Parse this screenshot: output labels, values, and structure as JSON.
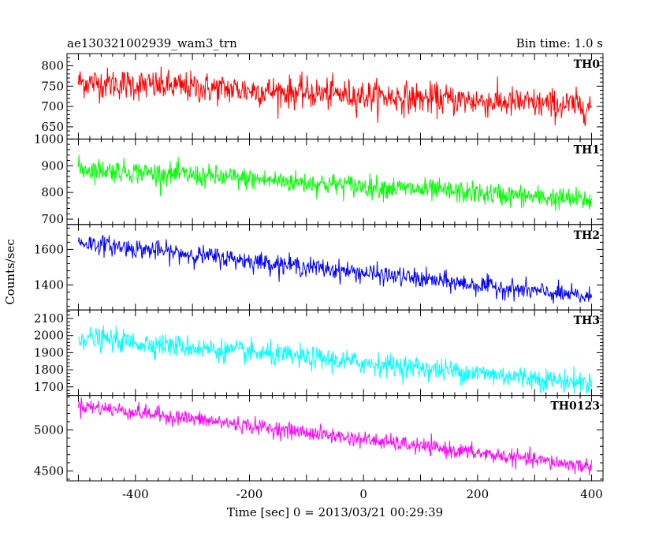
{
  "chart_data": {
    "type": "line",
    "title": "ae130321002939_wam3_trn",
    "bin_time": "Bin time: 1.0 s",
    "xlabel": "Time [sec] 0 = 2013/03/21 00:29:39",
    "ylabel": "Counts/sec",
    "xlim": [
      -520,
      420
    ],
    "x_ticks": [
      -400,
      -200,
      0,
      200,
      400
    ],
    "x_range": [
      -500,
      400
    ],
    "panels": [
      {
        "name": "TH0",
        "color": "#ff0000",
        "ylim": [
          620,
          830
        ],
        "y_ticks": [
          650,
          700,
          750,
          800
        ],
        "trend_start": 760,
        "trend_end": 700,
        "noise": 32
      },
      {
        "name": "TH1",
        "color": "#00ff00",
        "ylim": [
          680,
          1000
        ],
        "y_ticks": [
          700,
          800,
          900,
          1000
        ],
        "trend_start": 890,
        "trend_end": 770,
        "noise": 35
      },
      {
        "name": "TH2",
        "color": "#0000ff",
        "ylim": [
          1260,
          1740
        ],
        "y_ticks": [
          1400,
          1600
        ],
        "trend_start": 1640,
        "trend_end": 1330,
        "noise": 45
      },
      {
        "name": "TH3",
        "color": "#00ffff",
        "ylim": [
          1650,
          2150
        ],
        "y_ticks": [
          1700,
          1800,
          1900,
          2000,
          2100
        ],
        "trend_start": 1990,
        "trend_end": 1720,
        "noise": 55
      },
      {
        "name": "TH0123",
        "color": "#ff00ff",
        "ylim": [
          4380,
          5420
        ],
        "y_ticks": [
          4500,
          5000
        ],
        "trend_start": 5300,
        "trend_end": 4550,
        "noise": 80
      }
    ]
  }
}
